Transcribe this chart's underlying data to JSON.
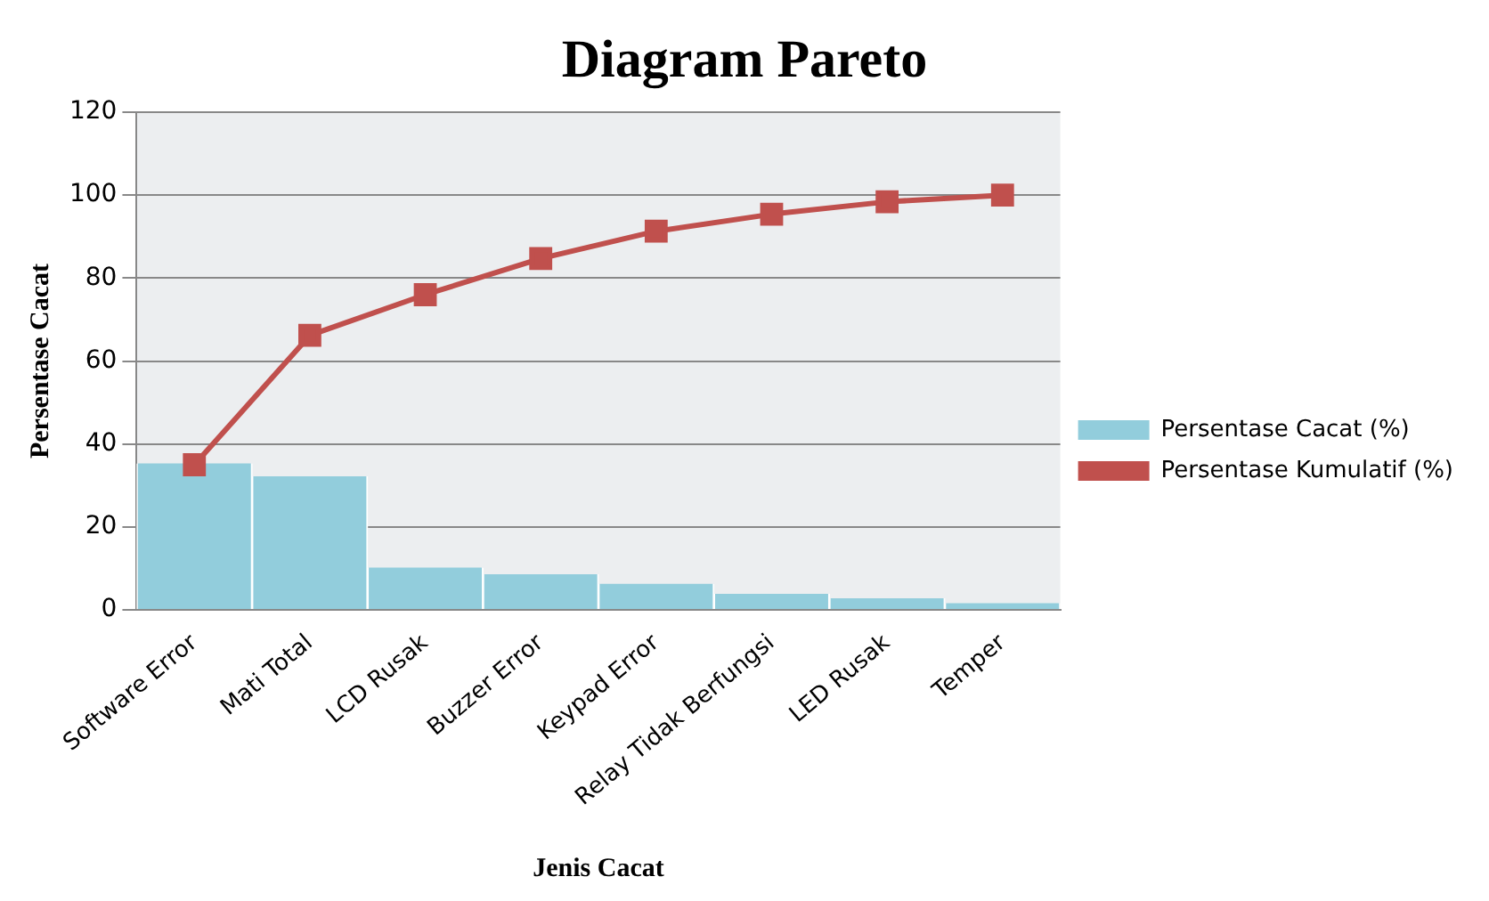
{
  "chart_data": {
    "type": "bar",
    "title": "Diagram Pareto",
    "xlabel": "Jenis Cacat",
    "ylabel": "Persentase Cacat",
    "categories": [
      "Software Error",
      "Mati Total",
      "LCD Rusak",
      "Buzzer Error",
      "Keypad Error",
      "Relay Tidak Berfungsi",
      "LED Rusak",
      "Temper"
    ],
    "series": [
      {
        "name": "Persentase Cacat (%)",
        "color": "#92cddc",
        "values": [
          35.3,
          32.2,
          10.2,
          8.6,
          6.3,
          3.9,
          2.8,
          1.6
        ]
      },
      {
        "name": "Persentase Kumulatif (%)",
        "type": "line",
        "color": "#c0504d",
        "marker": "square",
        "values": [
          35,
          66.2,
          76,
          84.7,
          91.3,
          95.4,
          98.4,
          100
        ]
      }
    ],
    "ylim": [
      0,
      120
    ],
    "yticks": [
      0,
      20,
      40,
      60,
      80,
      100,
      120
    ],
    "grid": "y",
    "legend": "right"
  }
}
